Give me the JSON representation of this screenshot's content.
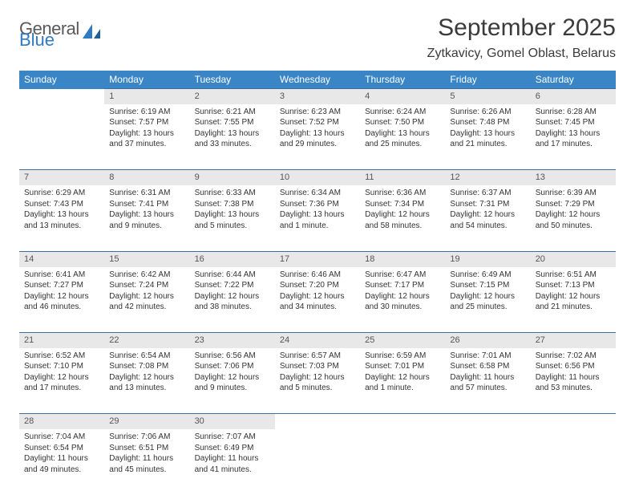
{
  "brand": {
    "general": "General",
    "blue": "Blue"
  },
  "title": "September 2025",
  "location": "Zytkavicy, Gomel Oblast, Belarus",
  "dayHeaders": [
    "Sunday",
    "Monday",
    "Tuesday",
    "Wednesday",
    "Thursday",
    "Friday",
    "Saturday"
  ],
  "colors": {
    "headerBg": "#3a85c6",
    "numBg": "#e8e8e8",
    "rowBorder": "#3a6fa5",
    "brandBlue": "#2f7ac0",
    "textDark": "#3b3b3b"
  },
  "weeks": [
    {
      "nums": [
        "",
        "1",
        "2",
        "3",
        "4",
        "5",
        "6"
      ],
      "cells": [
        null,
        {
          "sr": "Sunrise: 6:19 AM",
          "ss": "Sunset: 7:57 PM",
          "dl": "Daylight: 13 hours and 37 minutes."
        },
        {
          "sr": "Sunrise: 6:21 AM",
          "ss": "Sunset: 7:55 PM",
          "dl": "Daylight: 13 hours and 33 minutes."
        },
        {
          "sr": "Sunrise: 6:23 AM",
          "ss": "Sunset: 7:52 PM",
          "dl": "Daylight: 13 hours and 29 minutes."
        },
        {
          "sr": "Sunrise: 6:24 AM",
          "ss": "Sunset: 7:50 PM",
          "dl": "Daylight: 13 hours and 25 minutes."
        },
        {
          "sr": "Sunrise: 6:26 AM",
          "ss": "Sunset: 7:48 PM",
          "dl": "Daylight: 13 hours and 21 minutes."
        },
        {
          "sr": "Sunrise: 6:28 AM",
          "ss": "Sunset: 7:45 PM",
          "dl": "Daylight: 13 hours and 17 minutes."
        }
      ]
    },
    {
      "nums": [
        "7",
        "8",
        "9",
        "10",
        "11",
        "12",
        "13"
      ],
      "cells": [
        {
          "sr": "Sunrise: 6:29 AM",
          "ss": "Sunset: 7:43 PM",
          "dl": "Daylight: 13 hours and 13 minutes."
        },
        {
          "sr": "Sunrise: 6:31 AM",
          "ss": "Sunset: 7:41 PM",
          "dl": "Daylight: 13 hours and 9 minutes."
        },
        {
          "sr": "Sunrise: 6:33 AM",
          "ss": "Sunset: 7:38 PM",
          "dl": "Daylight: 13 hours and 5 minutes."
        },
        {
          "sr": "Sunrise: 6:34 AM",
          "ss": "Sunset: 7:36 PM",
          "dl": "Daylight: 13 hours and 1 minute."
        },
        {
          "sr": "Sunrise: 6:36 AM",
          "ss": "Sunset: 7:34 PM",
          "dl": "Daylight: 12 hours and 58 minutes."
        },
        {
          "sr": "Sunrise: 6:37 AM",
          "ss": "Sunset: 7:31 PM",
          "dl": "Daylight: 12 hours and 54 minutes."
        },
        {
          "sr": "Sunrise: 6:39 AM",
          "ss": "Sunset: 7:29 PM",
          "dl": "Daylight: 12 hours and 50 minutes."
        }
      ]
    },
    {
      "nums": [
        "14",
        "15",
        "16",
        "17",
        "18",
        "19",
        "20"
      ],
      "cells": [
        {
          "sr": "Sunrise: 6:41 AM",
          "ss": "Sunset: 7:27 PM",
          "dl": "Daylight: 12 hours and 46 minutes."
        },
        {
          "sr": "Sunrise: 6:42 AM",
          "ss": "Sunset: 7:24 PM",
          "dl": "Daylight: 12 hours and 42 minutes."
        },
        {
          "sr": "Sunrise: 6:44 AM",
          "ss": "Sunset: 7:22 PM",
          "dl": "Daylight: 12 hours and 38 minutes."
        },
        {
          "sr": "Sunrise: 6:46 AM",
          "ss": "Sunset: 7:20 PM",
          "dl": "Daylight: 12 hours and 34 minutes."
        },
        {
          "sr": "Sunrise: 6:47 AM",
          "ss": "Sunset: 7:17 PM",
          "dl": "Daylight: 12 hours and 30 minutes."
        },
        {
          "sr": "Sunrise: 6:49 AM",
          "ss": "Sunset: 7:15 PM",
          "dl": "Daylight: 12 hours and 25 minutes."
        },
        {
          "sr": "Sunrise: 6:51 AM",
          "ss": "Sunset: 7:13 PM",
          "dl": "Daylight: 12 hours and 21 minutes."
        }
      ]
    },
    {
      "nums": [
        "21",
        "22",
        "23",
        "24",
        "25",
        "26",
        "27"
      ],
      "cells": [
        {
          "sr": "Sunrise: 6:52 AM",
          "ss": "Sunset: 7:10 PM",
          "dl": "Daylight: 12 hours and 17 minutes."
        },
        {
          "sr": "Sunrise: 6:54 AM",
          "ss": "Sunset: 7:08 PM",
          "dl": "Daylight: 12 hours and 13 minutes."
        },
        {
          "sr": "Sunrise: 6:56 AM",
          "ss": "Sunset: 7:06 PM",
          "dl": "Daylight: 12 hours and 9 minutes."
        },
        {
          "sr": "Sunrise: 6:57 AM",
          "ss": "Sunset: 7:03 PM",
          "dl": "Daylight: 12 hours and 5 minutes."
        },
        {
          "sr": "Sunrise: 6:59 AM",
          "ss": "Sunset: 7:01 PM",
          "dl": "Daylight: 12 hours and 1 minute."
        },
        {
          "sr": "Sunrise: 7:01 AM",
          "ss": "Sunset: 6:58 PM",
          "dl": "Daylight: 11 hours and 57 minutes."
        },
        {
          "sr": "Sunrise: 7:02 AM",
          "ss": "Sunset: 6:56 PM",
          "dl": "Daylight: 11 hours and 53 minutes."
        }
      ]
    },
    {
      "nums": [
        "28",
        "29",
        "30",
        "",
        "",
        "",
        ""
      ],
      "cells": [
        {
          "sr": "Sunrise: 7:04 AM",
          "ss": "Sunset: 6:54 PM",
          "dl": "Daylight: 11 hours and 49 minutes."
        },
        {
          "sr": "Sunrise: 7:06 AM",
          "ss": "Sunset: 6:51 PM",
          "dl": "Daylight: 11 hours and 45 minutes."
        },
        {
          "sr": "Sunrise: 7:07 AM",
          "ss": "Sunset: 6:49 PM",
          "dl": "Daylight: 11 hours and 41 minutes."
        },
        null,
        null,
        null,
        null
      ]
    }
  ]
}
